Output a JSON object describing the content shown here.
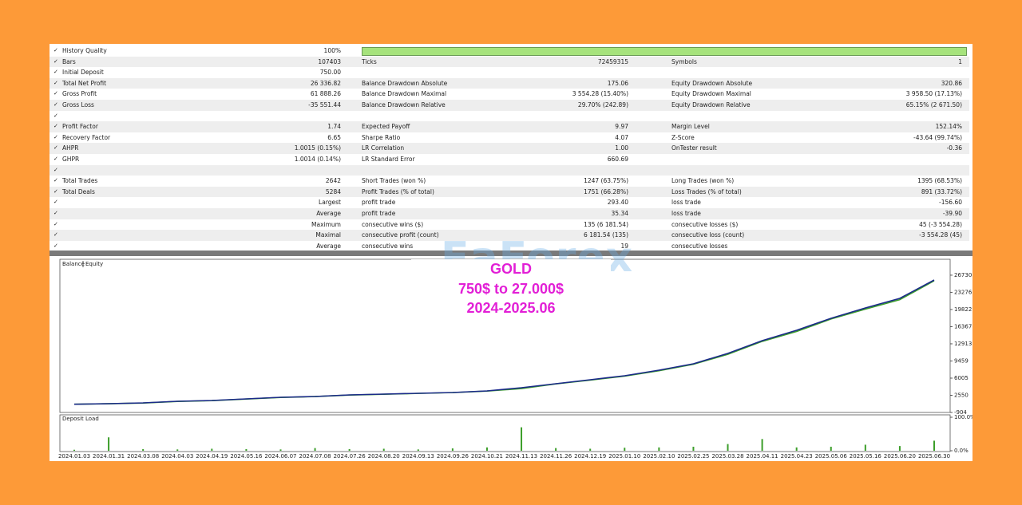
{
  "report": {
    "rows": [
      [
        "History Quality",
        "100%"
      ],
      [
        "Bars",
        "107403",
        "Ticks",
        "72459315",
        "Symbols",
        "1"
      ],
      [
        "Initial Deposit",
        "750.00"
      ],
      [
        "Total Net Profit",
        "26 336.82",
        "Balance Drawdown Absolute",
        "175.06",
        "Equity Drawdown Absolute",
        "320.86"
      ],
      [
        "Gross Profit",
        "61 888.26",
        "Balance Drawdown Maximal",
        "3 554.28 (15.40%)",
        "Equity Drawdown Maximal",
        "3 958.50 (17.13%)"
      ],
      [
        "Gross Loss",
        "-35 551.44",
        "Balance Drawdown Relative",
        "29.70% (242.89)",
        "Equity Drawdown Relative",
        "65.15% (2 671.50)"
      ],
      [],
      [
        "Profit Factor",
        "1.74",
        "Expected Payoff",
        "9.97",
        "Margin Level",
        "152.14%"
      ],
      [
        "Recovery Factor",
        "6.65",
        "Sharpe Ratio",
        "4.07",
        "Z-Score",
        "-43.64 (99.74%)"
      ],
      [
        "AHPR",
        "1.0015 (0.15%)",
        "LR Correlation",
        "1.00",
        "OnTester result",
        "-0.36"
      ],
      [
        "GHPR",
        "1.0014 (0.14%)",
        "LR Standard Error",
        "660.69"
      ],
      [],
      [
        "Total Trades",
        "2642",
        "Short Trades (won %)",
        "1247 (63.75%)",
        "Long Trades (won %)",
        "1395 (68.53%)"
      ],
      [
        "Total Deals",
        "5284",
        "Profit Trades (% of total)",
        "1751 (66.28%)",
        "Loss Trades (% of total)",
        "891 (33.72%)"
      ],
      [
        null,
        "Largest",
        "profit trade",
        "293.40",
        "loss trade",
        "-156.60"
      ],
      [
        null,
        "Average",
        "profit trade",
        "35.34",
        "loss trade",
        "-39.90"
      ],
      [
        null,
        "Maximum",
        "consecutive wins ($)",
        "135 (6 181.54)",
        "consecutive losses ($)",
        "45 (-3 554.28)"
      ],
      [
        null,
        "Maximal",
        "consecutive profit (count)",
        "6 181.54 (135)",
        "consecutive loss (count)",
        "-3 554.28 (45)"
      ],
      [
        null,
        "Average",
        "consecutive wins",
        "19",
        "consecutive losses"
      ]
    ]
  },
  "watermark": "EaForex",
  "overlay": {
    "lines": [
      "GOLD",
      "750$ to 27.000$",
      "2024-2025.06"
    ]
  },
  "chart_data": [
    {
      "type": "line",
      "categories": [
        "2024.01.03",
        "2024.01.31",
        "2024.03.08",
        "2024.04.03",
        "2024.04.19",
        "2024.05.16",
        "2024.06.07",
        "2024.07.08",
        "2024.07.26",
        "2024.08.20",
        "2024.09.13",
        "2024.09.26",
        "2024.10.21",
        "2024.11.13",
        "2024.11.26",
        "2024.12.19",
        "2025.01.10",
        "2025.02.10",
        "2025.02.25",
        "2025.03.28",
        "2025.04.11",
        "2025.04.23",
        "2025.05.06",
        "2025.05.16",
        "2025.06.20",
        "2025.06.30"
      ],
      "series": [
        {
          "name": "Balance",
          "color": "#1b2a8a",
          "values": [
            750,
            862,
            1023,
            1344,
            1505,
            1826,
            2147,
            2308,
            2629,
            2790,
            2950,
            3111,
            3432,
            4075,
            4878,
            5681,
            6484,
            7608,
            8893,
            10980,
            13550,
            15638,
            18047,
            20135,
            22062,
            25757
          ]
        },
        {
          "name": "Equity",
          "color": "#3c9e2a",
          "values": [
            750,
            850,
            1000,
            1320,
            1480,
            1800,
            2120,
            2290,
            2600,
            2760,
            2930,
            3090,
            3400,
            3900,
            4850,
            5600,
            6400,
            7500,
            8800,
            10800,
            13400,
            15400,
            17900,
            19900,
            21800,
            25600
          ]
        }
      ],
      "ylim": [
        -904,
        29930
      ],
      "yticks": [
        -904,
        2550,
        6005,
        9459,
        12913,
        16367,
        19822,
        23276,
        26730
      ]
    },
    {
      "type": "bar",
      "title": "Deposit Load",
      "color": "#3c9e2a",
      "values": [
        3,
        40,
        5,
        4,
        6,
        5,
        4,
        8,
        5,
        6,
        4,
        7,
        10,
        70,
        8,
        6,
        9,
        10,
        12,
        20,
        35,
        10,
        12,
        18,
        14,
        30
      ],
      "ylim": [
        0,
        100
      ],
      "yticks": [
        {
          "value": 0,
          "label": "0.0%"
        },
        {
          "value": 100,
          "label": "100.0%"
        }
      ]
    }
  ]
}
